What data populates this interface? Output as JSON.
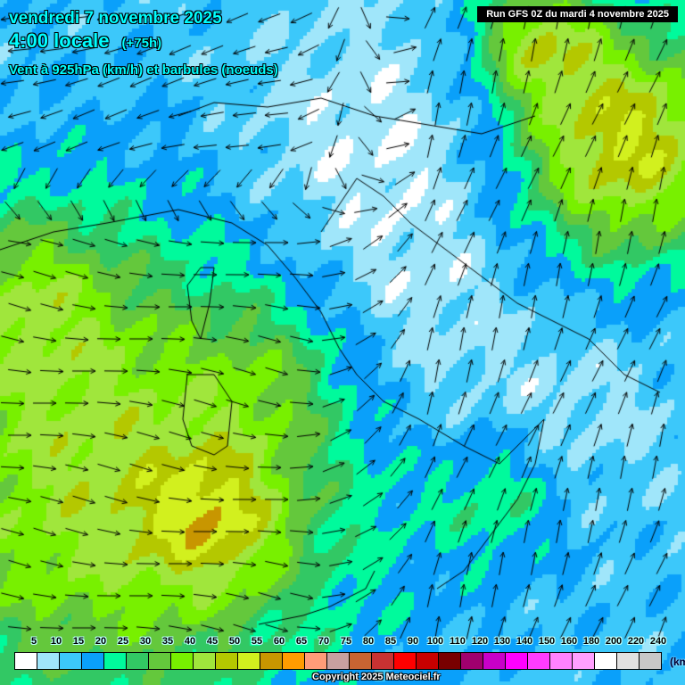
{
  "header": {
    "date": "vendredi 7 novembre 2025",
    "time": "4:00 locale",
    "lead": "(+75h)",
    "field": "Vent à 925hPa (km/h) et barbules (noeuds)",
    "run": "Run GFS 0Z du mardi 4 novembre 2025"
  },
  "legend": {
    "labels": [
      "5",
      "10",
      "15",
      "20",
      "25",
      "30",
      "35",
      "40",
      "45",
      "50",
      "55",
      "60",
      "65",
      "70",
      "75",
      "80",
      "85",
      "90",
      "100",
      "110",
      "120",
      "130",
      "140",
      "150",
      "160",
      "180",
      "200",
      "220",
      "240"
    ],
    "colors": [
      "#ffffff",
      "#a0e6fa",
      "#3cc8fa",
      "#0aa0fa",
      "#00fa9c",
      "#32c864",
      "#64c83c",
      "#78f000",
      "#a0e63c",
      "#b4c800",
      "#d2f01e",
      "#c89600",
      "#ff9c00",
      "#ff9c78",
      "#c8a0a0",
      "#c86432",
      "#c83232",
      "#ff0000",
      "#c80000",
      "#780000",
      "#a0006e",
      "#c800c8",
      "#ff00ff",
      "#ff3cff",
      "#ff82ff",
      "#ffa0ff",
      "#ffffff",
      "#e1e1e1",
      "#c8c8c8"
    ],
    "unit": "(km/h)"
  },
  "footer": {
    "copyright": "Copyright 2025 Meteociel.fr"
  }
}
